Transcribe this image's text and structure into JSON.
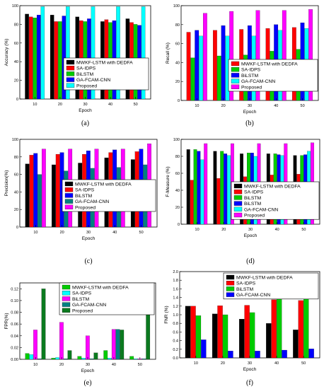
{
  "colors": [
    "#000000",
    "#ff0000",
    "#0000ff",
    "#00cc00",
    "#00ffff",
    "#ff00ff",
    "#008080",
    "#0b7a1f"
  ],
  "chart_data": [
    {
      "type": "bar",
      "caption": "(a)",
      "xlabel": "Epoch",
      "ylabel": "Accuracy (%)",
      "categories": [
        "10",
        "20",
        "30",
        "40",
        "50"
      ],
      "ylim": [
        0,
        100
      ],
      "yticks": [
        "0",
        "20",
        "40",
        "60",
        "80",
        "100"
      ],
      "legend_position": "center-right",
      "series": [
        {
          "name": "MWKF-LSTM with DEDFA",
          "color": "#000000",
          "values": [
            91,
            90,
            88,
            83,
            86
          ]
        },
        {
          "name": "SA-IDPS",
          "color": "#ff0000",
          "values": [
            88,
            83,
            84,
            85,
            82
          ]
        },
        {
          "name": "BiLSTM",
          "color": "#00cc00",
          "values": [
            87,
            83,
            83,
            82,
            80
          ]
        },
        {
          "name": "GA-FCAM-CNN",
          "color": "#0000ff",
          "values": [
            90,
            89,
            86,
            84,
            79
          ]
        },
        {
          "name": "Proposed",
          "color": "#00ffff",
          "values": [
            99,
            99,
            99,
            99,
            99
          ]
        }
      ]
    },
    {
      "type": "bar",
      "caption": "(b)",
      "xlabel": "Epoch",
      "ylabel": "Recall (%)",
      "categories": [
        "10",
        "20",
        "30",
        "40",
        "50"
      ],
      "ylim": [
        0,
        100
      ],
      "yticks": [
        "0",
        "20",
        "40",
        "60",
        "80",
        "100"
      ],
      "legend_position": "center-right",
      "series": [
        {
          "name": "MWKF-LSTM with DEDFA",
          "color": "#ff0000",
          "values": [
            72,
            74,
            75,
            76,
            77
          ]
        },
        {
          "name": "SA-IDPS",
          "color": "#00cc00",
          "values": [
            45,
            47,
            48,
            52,
            54
          ]
        },
        {
          "name": "BiLSTM",
          "color": "#0000ff",
          "values": [
            74,
            79,
            79,
            80,
            82
          ]
        },
        {
          "name": "GA-FCAM-CNN",
          "color": "#00ffff",
          "values": [
            68,
            68,
            68,
            74,
            76
          ]
        },
        {
          "name": "Proposed",
          "color": "#ff00ff",
          "values": [
            92,
            94,
            95,
            95,
            96
          ]
        }
      ]
    },
    {
      "type": "bar",
      "caption": "(c)",
      "xlabel": "Epoch",
      "ylabel": "Precision(%)",
      "categories": [
        "10",
        "20",
        "30",
        "40",
        "50"
      ],
      "ylim": [
        0,
        100
      ],
      "yticks": [
        "0",
        "20",
        "40",
        "60",
        "80",
        "100"
      ],
      "legend_position": "center-right",
      "series": [
        {
          "name": "MWKF-LSTM with DEDFA",
          "color": "#000000",
          "values": [
            72,
            71,
            73,
            79,
            77
          ]
        },
        {
          "name": "SA-IDPS",
          "color": "#ff0000",
          "values": [
            82,
            83,
            83,
            85,
            86
          ]
        },
        {
          "name": "BiLSTM",
          "color": "#0000ff",
          "values": [
            84,
            85,
            87,
            88,
            89
          ]
        },
        {
          "name": "GA-FCAM-CNN",
          "color": "#008080",
          "values": [
            60,
            64,
            67,
            68,
            71
          ]
        },
        {
          "name": "Proposed",
          "color": "#ff00ff",
          "values": [
            89,
            89,
            89,
            89,
            95
          ]
        }
      ]
    },
    {
      "type": "bar",
      "caption": "(d)",
      "xlabel": "Epoch",
      "ylabel": "F-Measure (%)",
      "categories": [
        "10",
        "20",
        "30",
        "40",
        "50"
      ],
      "ylim": [
        0,
        100
      ],
      "yticks": [
        "0",
        "20",
        "40",
        "60",
        "80",
        "100"
      ],
      "legend_position": "center-right",
      "series": [
        {
          "name": "MWKF-LSTM with DEDFA",
          "color": "#000000",
          "values": [
            88,
            86,
            83,
            83,
            81
          ]
        },
        {
          "name": "SA-IDPS",
          "color": "#ff0000",
          "values": [
            52,
            54,
            56,
            58,
            59
          ]
        },
        {
          "name": "BiLSTM",
          "color": "#00cc00",
          "values": [
            88,
            86,
            84,
            83,
            81
          ]
        },
        {
          "name": "BiLSTM",
          "color": "#0000ff",
          "values": [
            86,
            83,
            84,
            82,
            82
          ]
        },
        {
          "name": "GA-FCAM-CNN",
          "color": "#00ffff",
          "values": [
            76,
            81,
            80,
            81,
            86
          ]
        },
        {
          "name": "Proposed",
          "color": "#ff00ff",
          "values": [
            95,
            95,
            95,
            95,
            96
          ]
        }
      ]
    },
    {
      "type": "bar",
      "caption": "(e)",
      "xlabel": "Epoch",
      "ylabel": "FPR(%)",
      "categories": [
        "10",
        "20",
        "30",
        "40",
        "50"
      ],
      "ylim": [
        0,
        0.13
      ],
      "yticks": [
        "0.00",
        "0.02",
        "0.04",
        "0.06",
        "0.08",
        "0.10",
        "0.12"
      ],
      "legend_position": "top-left",
      "series": [
        {
          "name": "MWKF-LSTM with DEDFA",
          "color": "#00cc00",
          "values": [
            0.01,
            0.002,
            0.005,
            0.015,
            0.005
          ]
        },
        {
          "name": "SA-IDPS",
          "color": "#00ffff",
          "values": [
            0.008,
            0.003,
            0.002,
            0.002,
            0.001
          ]
        },
        {
          "name": "BiLSTM",
          "color": "#ff00ff",
          "values": [
            0.05,
            0.063,
            0.04,
            0.051,
            0.001
          ]
        },
        {
          "name": "GA-FCAM-CNN",
          "color": "#008080",
          "values": [
            0.001,
            0.001,
            0.001,
            0.051,
            0.001
          ]
        },
        {
          "name": "Proposed",
          "color": "#0b7a1f",
          "values": [
            0.12,
            0.015,
            0.011,
            0.05,
            0.089
          ]
        }
      ]
    },
    {
      "type": "bar",
      "caption": "(f)",
      "xlabel": "Epoch",
      "ylabel": "FNR (%)",
      "categories": [
        "10",
        "20",
        "30",
        "40",
        "50"
      ],
      "ylim": [
        0,
        2.0
      ],
      "yticks": [
        "0.0",
        "0.2",
        "0.4",
        "0.6",
        "0.8",
        "1.0",
        "1.2",
        "1.4",
        "1.6",
        "1.8",
        "2.0"
      ],
      "legend_position": "top-left",
      "series": [
        {
          "name": "MWKF-LSTM with DEDFA",
          "color": "#000000",
          "values": [
            1.2,
            1.02,
            0.9,
            0.8,
            0.65
          ]
        },
        {
          "name": "SA-IDPS",
          "color": "#ff0000",
          "values": [
            1.2,
            1.21,
            1.22,
            1.35,
            1.33
          ]
        },
        {
          "name": "BiLSTM",
          "color": "#00cc00",
          "values": [
            0.98,
            1.0,
            1.05,
            1.5,
            1.85
          ]
        },
        {
          "name": "GA-FCAM-CNN",
          "color": "#0000ff",
          "values": [
            0.42,
            0.16,
            0.16,
            0.18,
            0.21
          ]
        }
      ]
    }
  ]
}
